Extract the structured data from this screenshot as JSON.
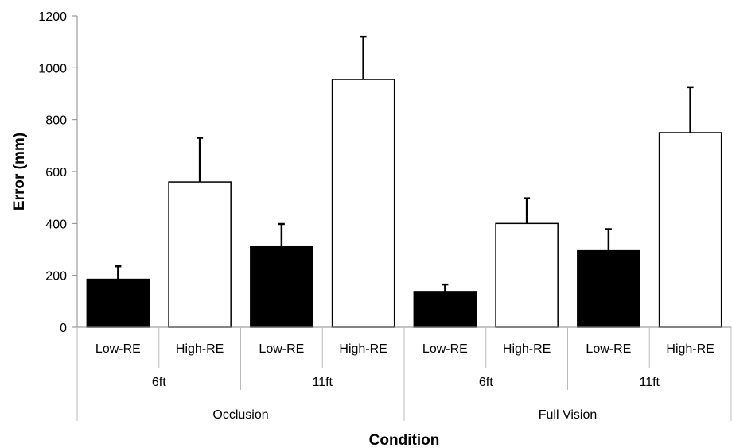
{
  "chart_data": {
    "type": "bar",
    "title": "",
    "xlabel": "Condition",
    "ylabel": "Error (mm)",
    "ylim": [
      0,
      1200
    ],
    "yticks": [
      0,
      200,
      400,
      600,
      800,
      1000,
      1200
    ],
    "grid": false,
    "legend": "none",
    "categories": [
      "Low-RE",
      "High-RE",
      "Low-RE",
      "High-RE",
      "Low-RE",
      "High-RE",
      "Low-RE",
      "High-RE"
    ],
    "distance_groups": [
      "6ft",
      "11ft",
      "6ft",
      "11ft"
    ],
    "condition_groups": [
      "Occlusion",
      "Full Vision"
    ],
    "values": [
      185,
      560,
      310,
      955,
      138,
      400,
      295,
      750
    ],
    "errors": [
      50,
      170,
      88,
      165,
      27,
      97,
      83,
      175
    ],
    "fills": [
      "#000000",
      "#ffffff",
      "#000000",
      "#ffffff",
      "#000000",
      "#ffffff",
      "#000000",
      "#ffffff"
    ]
  }
}
